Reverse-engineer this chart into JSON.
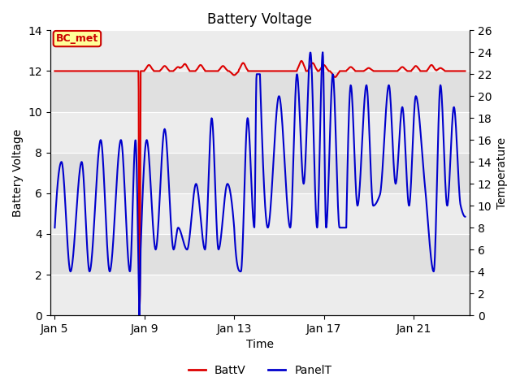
{
  "title": "Battery Voltage",
  "xlabel": "Time",
  "ylabel_left": "Battery Voltage",
  "ylabel_right": "Temperature",
  "annotation_text": "BC_met",
  "xlim_days": [
    3.8,
    22.5
  ],
  "ylim_left": [
    0,
    14
  ],
  "ylim_right": [
    0,
    26
  ],
  "x_ticks_labels": [
    "Jan 5",
    "Jan 9",
    "Jan 13",
    "Jan 17",
    "Jan 21"
  ],
  "x_ticks_days": [
    4,
    8,
    12,
    16,
    20
  ],
  "yticks_left": [
    0,
    2,
    4,
    6,
    8,
    10,
    12,
    14
  ],
  "yticks_right": [
    0,
    2,
    4,
    6,
    8,
    10,
    12,
    14,
    16,
    18,
    20,
    22,
    24,
    26
  ],
  "batt_color": "#dd0000",
  "panel_color": "#0000cc",
  "bg_color": "#e0e0e0",
  "light_band_color": "#ececec",
  "annotation_bg": "#ffff99",
  "annotation_border": "#cc0000",
  "annotation_text_color": "#cc0000"
}
